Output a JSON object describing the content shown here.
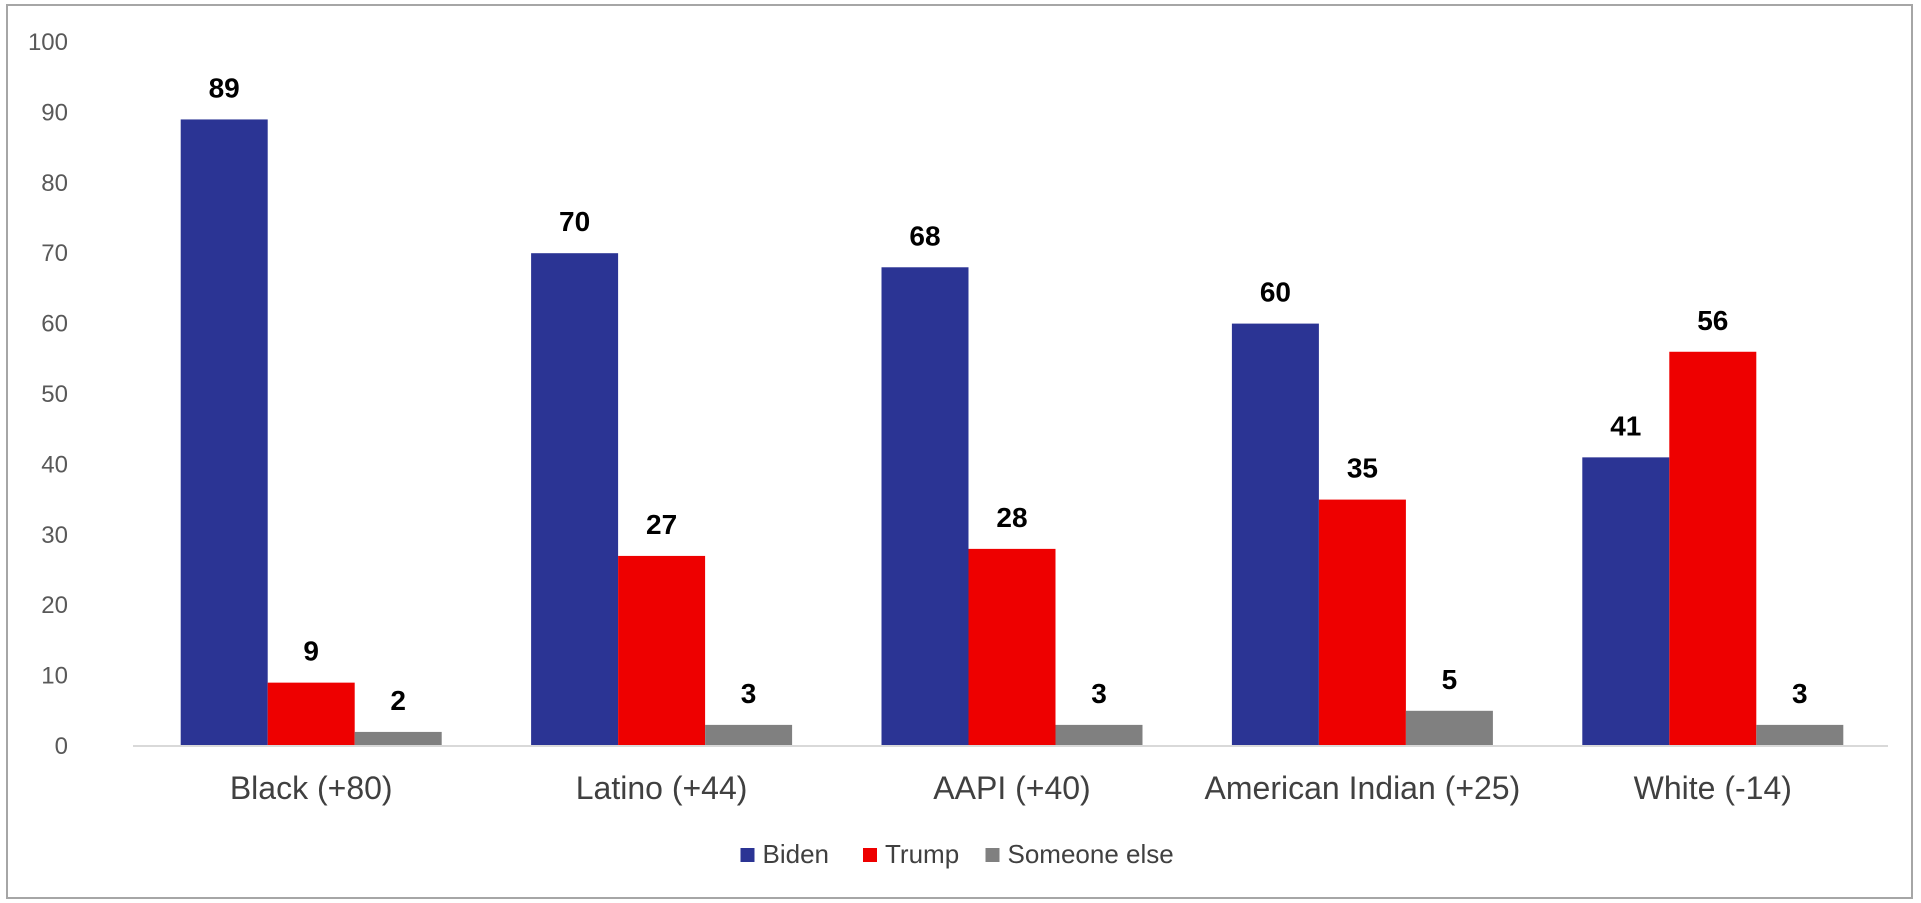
{
  "chart_data": {
    "type": "bar",
    "title": "",
    "xlabel": "",
    "ylabel": "",
    "ylim": [
      0,
      100
    ],
    "yticks": [
      0,
      10,
      20,
      30,
      40,
      50,
      60,
      70,
      80,
      90,
      100
    ],
    "grid": false,
    "legend_position": "bottom",
    "categories": [
      "Black (+80)",
      "Latino (+44)",
      "AAPI (+40)",
      "American Indian (+25)",
      "White (-14)"
    ],
    "series": [
      {
        "name": "Biden",
        "color": "#2b3494",
        "values": [
          89,
          70,
          68,
          60,
          41
        ]
      },
      {
        "name": "Trump",
        "color": "#ee0000",
        "values": [
          9,
          27,
          28,
          35,
          56
        ]
      },
      {
        "name": "Someone else",
        "color": "#808080",
        "values": [
          2,
          3,
          3,
          5,
          3
        ]
      }
    ]
  }
}
